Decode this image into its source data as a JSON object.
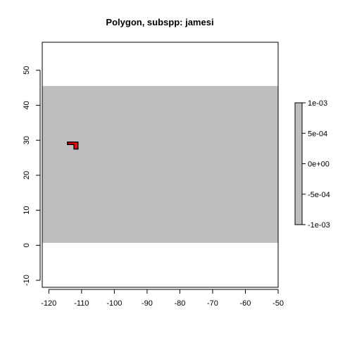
{
  "chart_data": {
    "type": "heatmap",
    "title": "Polygon, subspp: jamesi",
    "xlabel": "",
    "ylabel": "",
    "xlim": [
      -122,
      -50
    ],
    "ylim": [
      -12,
      58
    ],
    "x_ticks": [
      -120,
      -110,
      -100,
      -90,
      -80,
      -70,
      -60,
      -50
    ],
    "y_ticks": [
      -10,
      0,
      10,
      20,
      30,
      40,
      50
    ],
    "raster_extent": {
      "xmin": -122,
      "xmax": -50,
      "ymin": 0.7,
      "ymax": 45.5
    },
    "raster_value": 0,
    "raster_color": "#bebebe",
    "polygon": {
      "name": "jamesi",
      "fill": "#ff0000",
      "stroke": "#000000",
      "points": [
        [
          -114.3,
          29.5
        ],
        [
          -111.1,
          29.5
        ],
        [
          -111.1,
          27.5
        ],
        [
          -112.3,
          27.5
        ],
        [
          -112.3,
          28.8
        ],
        [
          -114.3,
          28.8
        ]
      ]
    },
    "legend": {
      "placement": "right",
      "ticks": [
        "1e-03",
        "5e-04",
        "0e+00",
        "-5e-04",
        "-1e-03"
      ],
      "range": [
        -0.001,
        0.001
      ]
    },
    "grid": false
  }
}
